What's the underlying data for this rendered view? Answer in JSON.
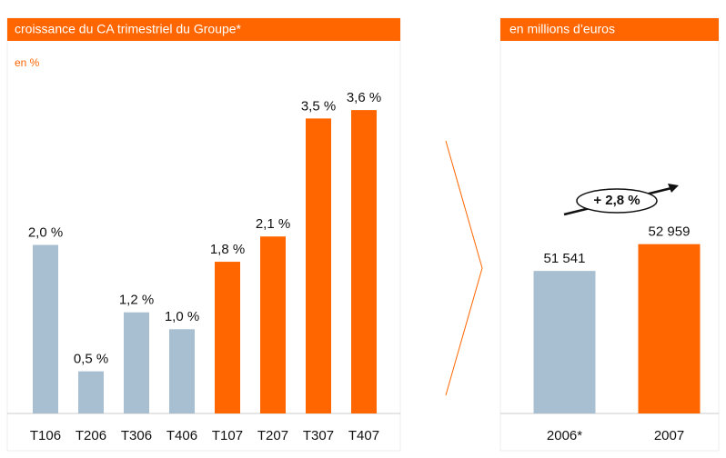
{
  "chart_data": [
    {
      "type": "bar",
      "title": "croissance du CA trimestriel du Groupe*",
      "subtitle": "en %",
      "categories": [
        "T106",
        "T206",
        "T306",
        "T406",
        "T107",
        "T207",
        "T307",
        "T407"
      ],
      "values": [
        2.0,
        0.5,
        1.2,
        1.0,
        1.8,
        2.1,
        3.5,
        3.6
      ],
      "value_labels": [
        "2,0 %",
        "0,5 %",
        "1,2 %",
        "1,0 %",
        "1,8 %",
        "2,1 %",
        "3,5 %",
        "3,6 %"
      ],
      "colors": [
        "#a8bfd2",
        "#a8bfd2",
        "#a8bfd2",
        "#a8bfd2",
        "#ff6600",
        "#ff6600",
        "#ff6600",
        "#ff6600"
      ],
      "ylim": [
        0,
        4
      ]
    },
    {
      "type": "bar",
      "title": "en millions d’euros",
      "categories": [
        "2006*",
        "2007"
      ],
      "values": [
        51541,
        52959
      ],
      "value_labels": [
        "51 541",
        "52 959"
      ],
      "colors": [
        "#a8bfd2",
        "#ff6600"
      ],
      "ylim": [
        44000,
        54000
      ],
      "annotation": "+ 2,8 %"
    }
  ]
}
